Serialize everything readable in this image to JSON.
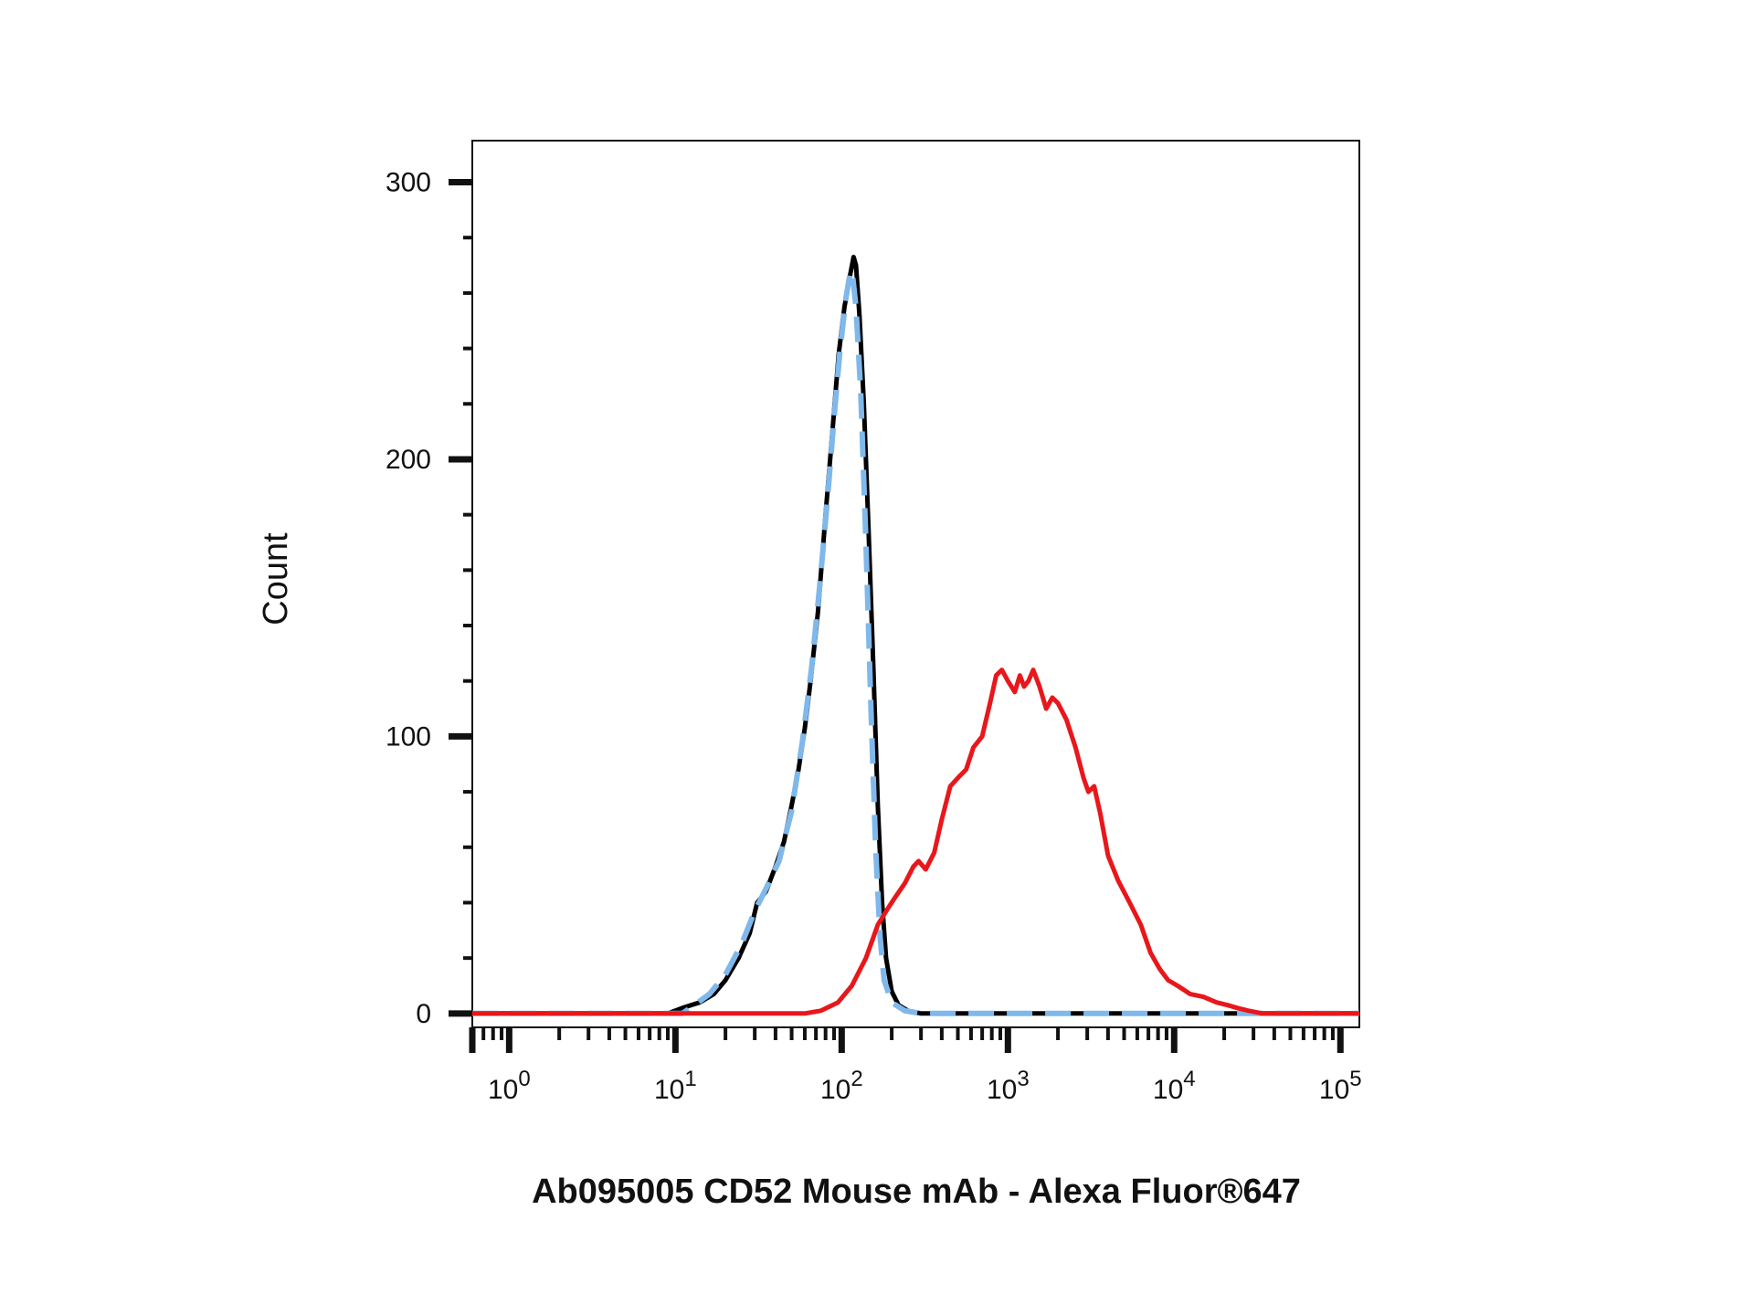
{
  "chart_data": {
    "type": "line",
    "title": "",
    "xlabel": "Ab095005 CD52 Mouse mAb - Alexa Fluor®647",
    "ylabel": "Count",
    "xscale": "log",
    "xlim": [
      0.6,
      130000
    ],
    "ylim": [
      -5,
      315
    ],
    "grid": false,
    "legend": "none",
    "y_ticks": [
      0,
      100,
      200,
      300
    ],
    "x_ticks": [
      {
        "value": 1,
        "base": "10",
        "exp": "0"
      },
      {
        "value": 10,
        "base": "10",
        "exp": "1"
      },
      {
        "value": 100,
        "base": "10",
        "exp": "2"
      },
      {
        "value": 1000,
        "base": "10",
        "exp": "3"
      },
      {
        "value": 10000,
        "base": "10",
        "exp": "4"
      },
      {
        "value": 100000,
        "base": "10",
        "exp": "5"
      }
    ],
    "series": [
      {
        "color": "#000000",
        "style": "solid",
        "points": [
          [
            0.6,
            0
          ],
          [
            9,
            0
          ],
          [
            11,
            2
          ],
          [
            14,
            4
          ],
          [
            17,
            7
          ],
          [
            20,
            12
          ],
          [
            24,
            20
          ],
          [
            28,
            29
          ],
          [
            31,
            40
          ],
          [
            35,
            44
          ],
          [
            40,
            53
          ],
          [
            45,
            62
          ],
          [
            50,
            75
          ],
          [
            55,
            88
          ],
          [
            60,
            103
          ],
          [
            65,
            120
          ],
          [
            72,
            145
          ],
          [
            80,
            180
          ],
          [
            88,
            210
          ],
          [
            96,
            238
          ],
          [
            104,
            255
          ],
          [
            112,
            266
          ],
          [
            118,
            273
          ],
          [
            122,
            270
          ],
          [
            128,
            252
          ],
          [
            136,
            220
          ],
          [
            145,
            175
          ],
          [
            155,
            125
          ],
          [
            165,
            75
          ],
          [
            175,
            40
          ],
          [
            185,
            20
          ],
          [
            200,
            8
          ],
          [
            220,
            3
          ],
          [
            250,
            1
          ],
          [
            300,
            0
          ],
          [
            130000,
            0
          ]
        ]
      },
      {
        "color": "#7fb8ea",
        "style": "dashed",
        "points": [
          [
            0.6,
            0
          ],
          [
            11,
            0
          ],
          [
            13,
            3
          ],
          [
            16,
            7
          ],
          [
            20,
            14
          ],
          [
            25,
            25
          ],
          [
            30,
            37
          ],
          [
            35,
            45
          ],
          [
            42,
            55
          ],
          [
            50,
            73
          ],
          [
            58,
            98
          ],
          [
            66,
            125
          ],
          [
            74,
            155
          ],
          [
            82,
            185
          ],
          [
            90,
            215
          ],
          [
            98,
            240
          ],
          [
            106,
            258
          ],
          [
            113,
            268
          ],
          [
            117,
            265
          ],
          [
            122,
            255
          ],
          [
            130,
            225
          ],
          [
            140,
            170
          ],
          [
            150,
            110
          ],
          [
            160,
            60
          ],
          [
            170,
            28
          ],
          [
            180,
            12
          ],
          [
            200,
            4
          ],
          [
            240,
            1
          ],
          [
            300,
            0
          ],
          [
            130000,
            0
          ]
        ]
      },
      {
        "color": "#e8171b",
        "style": "solid",
        "points": [
          [
            0.6,
            0
          ],
          [
            60,
            0
          ],
          [
            75,
            1
          ],
          [
            95,
            4
          ],
          [
            115,
            10
          ],
          [
            140,
            20
          ],
          [
            165,
            32
          ],
          [
            190,
            38
          ],
          [
            210,
            42
          ],
          [
            240,
            47
          ],
          [
            270,
            53
          ],
          [
            290,
            55
          ],
          [
            320,
            52
          ],
          [
            360,
            58
          ],
          [
            400,
            70
          ],
          [
            450,
            82
          ],
          [
            500,
            85
          ],
          [
            560,
            88
          ],
          [
            620,
            96
          ],
          [
            700,
            100
          ],
          [
            780,
            112
          ],
          [
            850,
            122
          ],
          [
            920,
            124
          ],
          [
            1000,
            120
          ],
          [
            1100,
            116
          ],
          [
            1180,
            122
          ],
          [
            1250,
            118
          ],
          [
            1330,
            120
          ],
          [
            1420,
            124
          ],
          [
            1550,
            118
          ],
          [
            1700,
            110
          ],
          [
            1850,
            114
          ],
          [
            2000,
            112
          ],
          [
            2250,
            106
          ],
          [
            2550,
            96
          ],
          [
            2850,
            85
          ],
          [
            3050,
            80
          ],
          [
            3300,
            82
          ],
          [
            3600,
            72
          ],
          [
            4000,
            57
          ],
          [
            4600,
            48
          ],
          [
            5400,
            40
          ],
          [
            6300,
            32
          ],
          [
            7200,
            22
          ],
          [
            8200,
            16
          ],
          [
            9200,
            12
          ],
          [
            10500,
            10
          ],
          [
            12500,
            7
          ],
          [
            15000,
            6
          ],
          [
            18000,
            4
          ],
          [
            21000,
            3
          ],
          [
            24000,
            2
          ],
          [
            28000,
            1
          ],
          [
            34000,
            0
          ],
          [
            130000,
            0
          ]
        ]
      }
    ]
  }
}
